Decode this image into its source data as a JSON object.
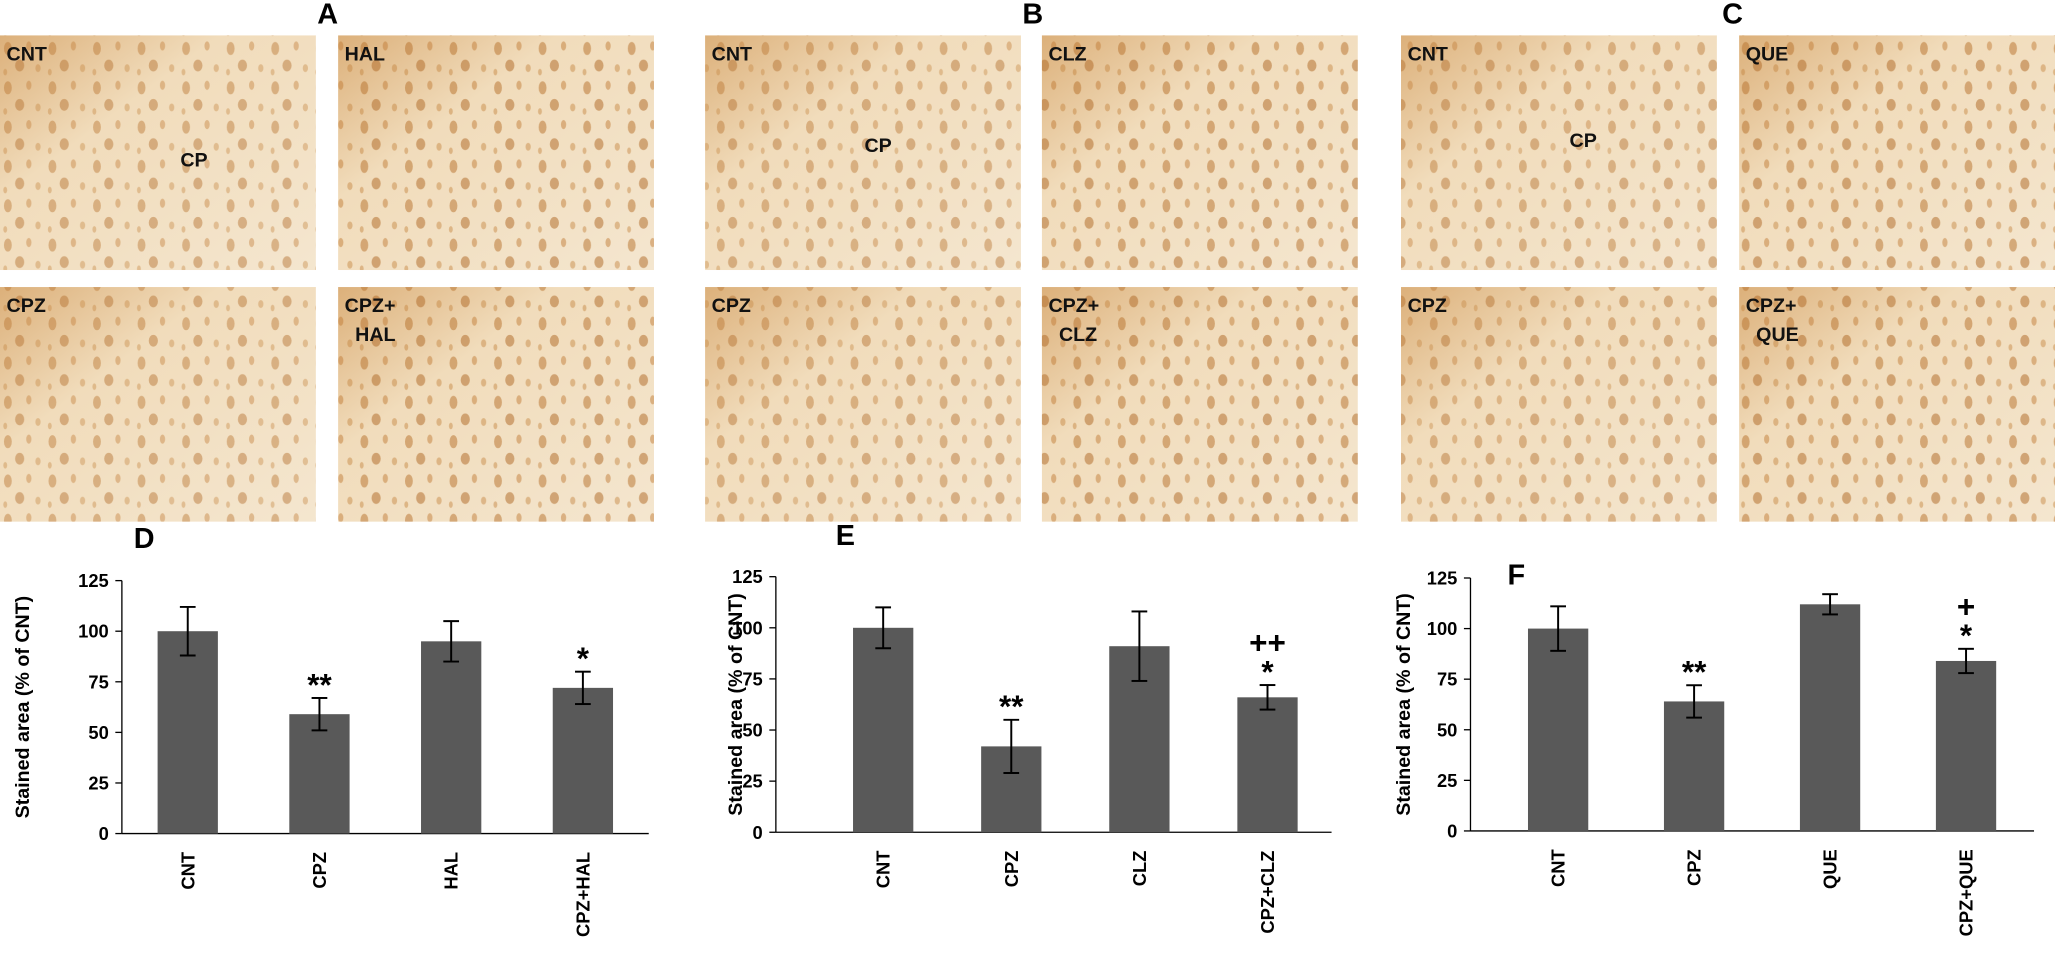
{
  "image_panels": [
    {
      "letter": "A",
      "tiles": [
        {
          "label": [
            "CNT"
          ],
          "region": "CP"
        },
        {
          "label": [
            "HAL"
          ]
        },
        {
          "label": [
            "CPZ"
          ]
        },
        {
          "label": [
            "CPZ+",
            "HAL"
          ]
        }
      ]
    },
    {
      "letter": "B",
      "tiles": [
        {
          "label": [
            "CNT"
          ],
          "region": "CP"
        },
        {
          "label": [
            "CLZ"
          ]
        },
        {
          "label": [
            "CPZ"
          ]
        },
        {
          "label": [
            "CPZ+",
            "CLZ"
          ]
        }
      ]
    },
    {
      "letter": "C",
      "tiles": [
        {
          "label": [
            "CNT"
          ],
          "region": "CP"
        },
        {
          "label": [
            "QUE"
          ]
        },
        {
          "label": [
            "CPZ"
          ]
        },
        {
          "label": [
            "CPZ+",
            "QUE"
          ]
        }
      ]
    }
  ],
  "chart_data": [
    {
      "type": "bar",
      "title": "D",
      "y_label": "Stained area (% of CNT)",
      "categories": [
        "CNT",
        "CPZ",
        "HAL",
        "CPZ+HAL"
      ],
      "values": [
        100,
        59,
        95,
        72
      ],
      "errors": [
        12,
        8,
        10,
        8
      ],
      "markers": [
        null,
        [
          "**"
        ],
        null,
        [
          "*"
        ]
      ],
      "color": "#595959",
      "ylim": [
        0,
        125
      ],
      "yticks": [
        0,
        25,
        50,
        75,
        100,
        125
      ]
    },
    {
      "type": "bar",
      "title": "E",
      "y_label": "Stained area (% of CNT)",
      "categories": [
        "CNT",
        "CPZ",
        "CLZ",
        "CPZ+CLZ"
      ],
      "values": [
        100,
        42,
        91,
        66
      ],
      "errors": [
        10,
        13,
        17,
        6
      ],
      "markers": [
        null,
        [
          "**"
        ],
        null,
        [
          "++",
          "*"
        ]
      ],
      "color": "#595959",
      "ylim": [
        0,
        125
      ],
      "yticks": [
        0,
        25,
        50,
        75,
        100,
        125
      ]
    },
    {
      "type": "bar",
      "title": "F",
      "y_label": "Stained area (% of CNT)",
      "categories": [
        "CNT",
        "CPZ",
        "QUE",
        "CPZ+QUE"
      ],
      "values": [
        100,
        64,
        112,
        84
      ],
      "errors": [
        11,
        8,
        5,
        6
      ],
      "markers": [
        null,
        [
          "**"
        ],
        null,
        [
          "+",
          "*"
        ]
      ],
      "color": "#595959",
      "ylim": [
        0,
        125
      ],
      "yticks": [
        0,
        25,
        50,
        75,
        100,
        125
      ]
    }
  ]
}
